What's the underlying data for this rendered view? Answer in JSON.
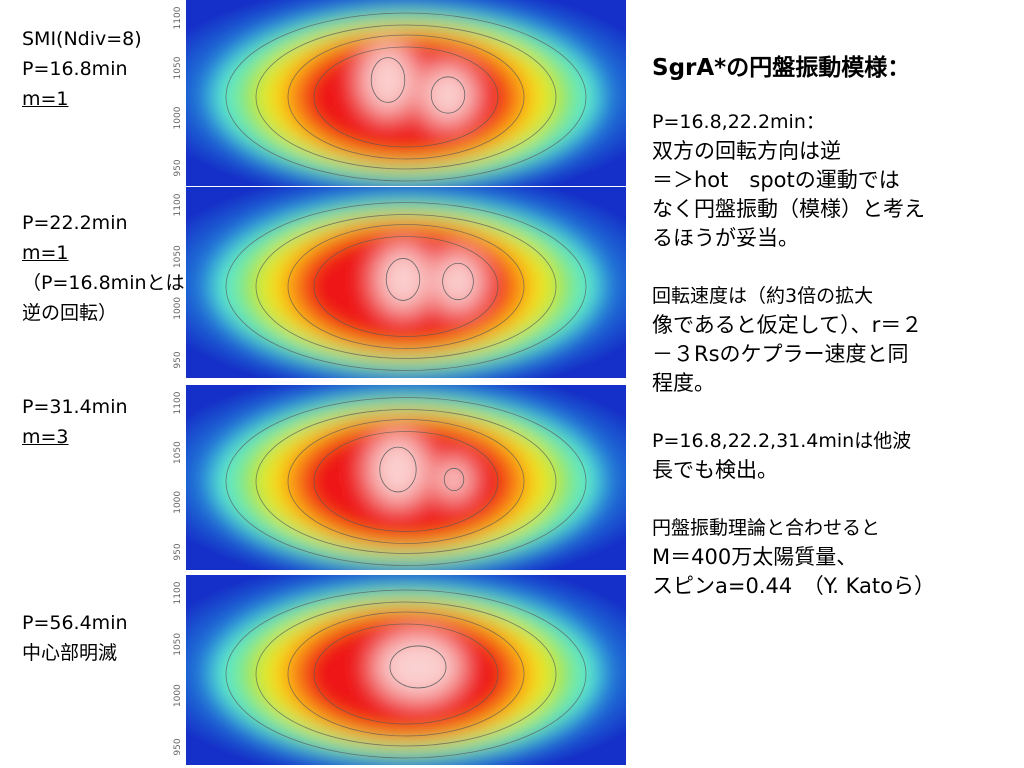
{
  "panels": [
    {
      "lines": [
        {
          "text": "SMI(Ndiv=8)"
        },
        {
          "text": "P=16.8min"
        },
        {
          "text": "m=1",
          "underline": true
        }
      ],
      "yticks": [
        "1100",
        "1050",
        "1000",
        "950"
      ]
    },
    {
      "lines": [
        {
          "text": "P=22.2min"
        },
        {
          "text": "m=1",
          "underline": true
        },
        {
          "text": "（P=16.8minとは"
        },
        {
          "text": "逆の回転）"
        }
      ],
      "yticks": [
        "1100",
        "1050",
        "1000",
        "950"
      ]
    },
    {
      "lines": [
        {
          "text": "P=31.4min"
        },
        {
          "text": "m=3",
          "underline": true
        }
      ],
      "yticks": [
        "1100",
        "1050",
        "1000",
        "950"
      ]
    },
    {
      "lines": [
        {
          "text": "P=56.4min"
        },
        {
          "text": "中心部明滅"
        }
      ],
      "yticks": [
        "1100",
        "1050",
        "1000",
        "950"
      ]
    }
  ],
  "notes": {
    "title": "SgrA*の円盤振動模様：",
    "paragraphs": [
      [
        "P=16.8,22.2min：",
        "双方の回転方向は逆",
        "＝＞hot　spotの運動では",
        "なく円盤振動（模様）と考え",
        "るほうが妥当。"
      ],
      [
        "回転速度は（約3倍の拡大",
        "像であると仮定して）、r＝２",
        "－３Rsのケプラー速度と同",
        "程度。"
      ],
      [
        "P=16.8,22.2,31.4minは他波",
        "長でも検出。"
      ],
      [
        "円盤振動理論と合わせると",
        "M＝400万太陽質量、",
        "スピンa=0.44　（Y. Katoら）"
      ]
    ]
  }
}
